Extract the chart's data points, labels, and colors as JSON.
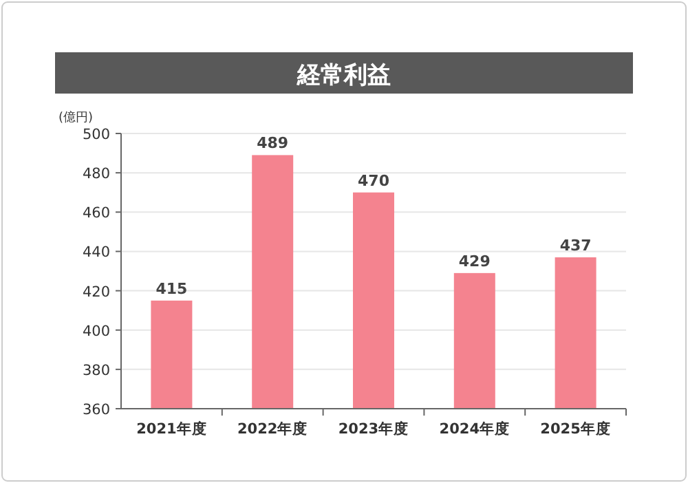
{
  "chart_data": {
    "type": "bar",
    "title": "経常利益",
    "ylabel": "(億円)",
    "categories": [
      "2021年度",
      "2022年度",
      "2023年度",
      "2024年度",
      "2025年度"
    ],
    "values": [
      415,
      489,
      470,
      429,
      437
    ],
    "color": "#f4838f",
    "ylim": [
      360,
      500
    ],
    "yticks": [
      360,
      380,
      400,
      420,
      440,
      460,
      480,
      500
    ],
    "grid": "y",
    "data_labels": true
  }
}
